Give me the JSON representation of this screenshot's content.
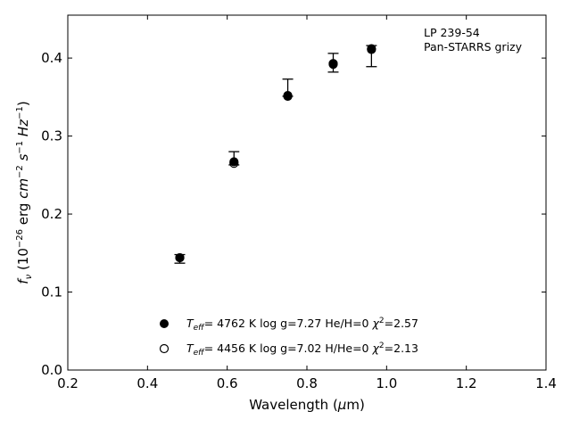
{
  "chart_data": {
    "type": "scatter",
    "xlabel": "Wavelength (μm)",
    "ylabel": "f_ν (10^-26 erg cm^-2 s^-1 Hz^-1)",
    "xlim": [
      0.2,
      1.4
    ],
    "ylim": [
      0.0,
      0.455
    ],
    "xticks": [
      "0.2",
      "0.4",
      "0.6",
      "0.8",
      "1.0",
      "1.2",
      "1.4"
    ],
    "yticks": [
      "0.0",
      "0.1",
      "0.2",
      "0.3",
      "0.4"
    ],
    "annotation_lines": [
      "LP 239-54",
      "Pan-STARRS grizy"
    ],
    "observed": {
      "x": [
        0.481,
        0.617,
        0.752,
        0.866,
        0.962
      ],
      "y": [
        0.145,
        0.268,
        0.354,
        0.394,
        0.413
      ],
      "err_low": [
        0.008,
        0.005,
        0.003,
        0.012,
        0.024
      ],
      "err_high": [
        0.003,
        0.012,
        0.019,
        0.012,
        0.003
      ]
    },
    "series": [
      {
        "name": "T_eff= 4762 K log g=7.27 He/H=0 χ²=2.57",
        "marker": "filled-circle",
        "x": [
          0.481,
          0.617,
          0.752,
          0.866,
          0.962
        ],
        "y": [
          0.144,
          0.267,
          0.352,
          0.393,
          0.412
        ]
      },
      {
        "name": "T_eff= 4456 K log g=7.02 H/He=0 χ²=2.13",
        "marker": "open-circle",
        "x": [
          0.481,
          0.617,
          0.752,
          0.866,
          0.962
        ],
        "y": [
          0.144,
          0.265,
          0.351,
          0.392,
          0.411
        ]
      }
    ],
    "legend": [
      {
        "marker": "filled-circle",
        "teff": "4762 K",
        "logg": "log g=7.27",
        "comp": "He/H=0",
        "chi2": "2.57"
      },
      {
        "marker": "open-circle",
        "teff": "4456 K",
        "logg": "log g=7.02",
        "comp": "H/He=0",
        "chi2": "2.13"
      }
    ],
    "legend_position": "lower-center",
    "grid": false
  }
}
